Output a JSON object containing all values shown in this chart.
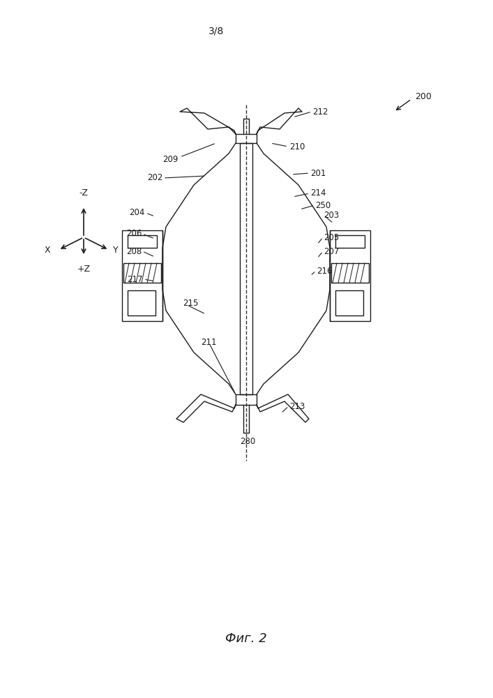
{
  "title": "3/8",
  "fig_label": "Фиг. 2",
  "ref_200": "200",
  "bg_color": "#ffffff",
  "line_color": "#1a1a1a",
  "label_fontsize": 8.5,
  "title_fontsize": 10
}
